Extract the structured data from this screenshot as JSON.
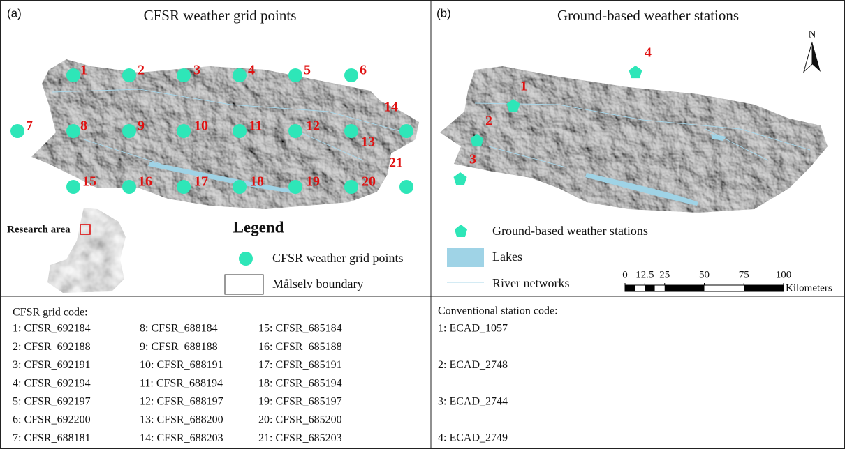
{
  "panel_a": {
    "label": "(a)",
    "title": "CFSR weather grid points",
    "grid_points": [
      "1",
      "2",
      "3",
      "4",
      "5",
      "6",
      "7",
      "8",
      "9",
      "10",
      "11",
      "12",
      "13",
      "14",
      "15",
      "16",
      "17",
      "18",
      "19",
      "20",
      "21"
    ],
    "legend": {
      "title": "Legend",
      "items": [
        "CFSR weather grid points",
        "Målselv boundary"
      ]
    },
    "inset_label": "Research area"
  },
  "panel_b": {
    "label": "(b)",
    "title": "Ground-based weather stations",
    "stations": [
      "1",
      "2",
      "3",
      "4"
    ],
    "north": "N",
    "legend": {
      "items": [
        "Ground-based weather stations",
        "Lakes",
        "River networks"
      ]
    },
    "scale_bar": {
      "ticks": [
        0,
        12.5,
        25,
        50,
        75,
        100
      ],
      "unit": "Kilometers"
    }
  },
  "grid_codes": {
    "header": "CFSR grid code:",
    "entries": [
      "1: CFSR_692184",
      "2: CFSR_692188",
      "3: CFSR_692191",
      "4: CFSR_692194",
      "5: CFSR_692197",
      "6: CFSR_692200",
      "7: CFSR_688181",
      "8: CFSR_688184",
      "9: CFSR_688188",
      "10: CFSR_688191",
      "11: CFSR_688194",
      "12: CFSR_688197",
      "13: CFSR_688200",
      "14: CFSR_688203",
      "15: CFSR_685184",
      "16: CFSR_685188",
      "17: CFSR_685191",
      "18: CFSR_685194",
      "19: CFSR_685197",
      "20: CFSR_685200",
      "21: CFSR_685203"
    ]
  },
  "station_codes": {
    "header": "Conventional station code:",
    "entries": [
      "1: ECAD_1057",
      "2: ECAD_2748",
      "3: ECAD_2744",
      "4: ECAD_2749"
    ]
  }
}
